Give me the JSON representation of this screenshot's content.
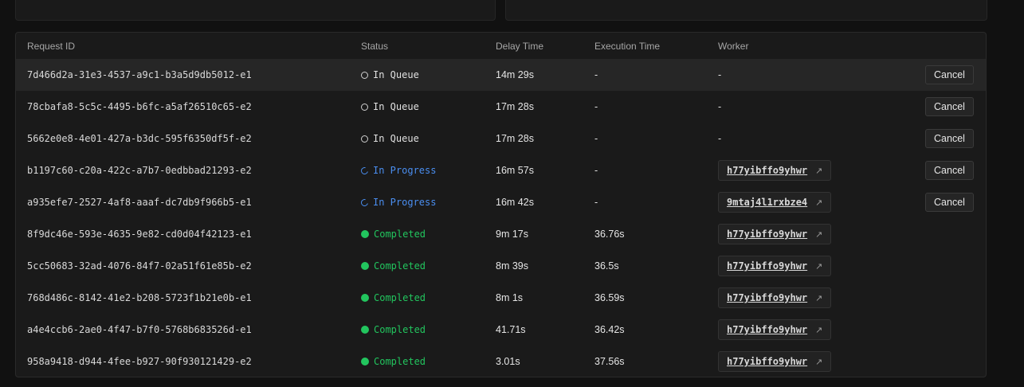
{
  "table": {
    "headers": {
      "request_id": "Request ID",
      "status": "Status",
      "delay_time": "Delay Time",
      "execution_time": "Execution Time",
      "worker": "Worker"
    },
    "cancel_label": "Cancel",
    "rows": [
      {
        "id": "7d466d2a-31e3-4537-a9c1-b3a5d9db5012-e1",
        "status": "In Queue",
        "delay": "14m 29s",
        "exec": "-",
        "worker": "-"
      },
      {
        "id": "78cbafa8-5c5c-4495-b6fc-a5af26510c65-e2",
        "status": "In Queue",
        "delay": "17m 28s",
        "exec": "-",
        "worker": "-"
      },
      {
        "id": "5662e0e8-4e01-427a-b3dc-595f6350df5f-e2",
        "status": "In Queue",
        "delay": "17m 28s",
        "exec": "-",
        "worker": "-"
      },
      {
        "id": "b1197c60-c20a-422c-a7b7-0edbbad21293-e2",
        "status": "In Progress",
        "delay": "16m 57s",
        "exec": "-",
        "worker": "h77yibffo9yhwr"
      },
      {
        "id": "a935efe7-2527-4af8-aaaf-dc7db9f966b5-e1",
        "status": "In Progress",
        "delay": "16m 42s",
        "exec": "-",
        "worker": "9mtaj4l1rxbze4"
      },
      {
        "id": "8f9dc46e-593e-4635-9e82-cd0d04f42123-e1",
        "status": "Completed",
        "delay": "9m 17s",
        "exec": "36.76s",
        "worker": "h77yibffo9yhwr"
      },
      {
        "id": "5cc50683-32ad-4076-84f7-02a51f61e85b-e2",
        "status": "Completed",
        "delay": "8m 39s",
        "exec": "36.5s",
        "worker": "h77yibffo9yhwr"
      },
      {
        "id": "768d486c-8142-41e2-b208-5723f1b21e0b-e1",
        "status": "Completed",
        "delay": "8m 1s",
        "exec": "36.59s",
        "worker": "h77yibffo9yhwr"
      },
      {
        "id": "a4e4ccb6-2ae0-4f47-b7f0-5768b683526d-e1",
        "status": "Completed",
        "delay": "41.71s",
        "exec": "36.42s",
        "worker": "h77yibffo9yhwr"
      },
      {
        "id": "958a9418-d944-4fee-b927-90f930121429-e2",
        "status": "Completed",
        "delay": "3.01s",
        "exec": "37.56s",
        "worker": "h77yibffo9yhwr"
      }
    ]
  },
  "colors": {
    "background": "#111111",
    "card": "#1a1a1a",
    "in_progress": "#4a8ef0",
    "completed": "#22c55e"
  },
  "icons": {
    "in_queue": "circle-outline-icon",
    "in_progress": "spinner-icon",
    "completed": "filled-circle-icon",
    "worker_link": "external-link-icon"
  }
}
